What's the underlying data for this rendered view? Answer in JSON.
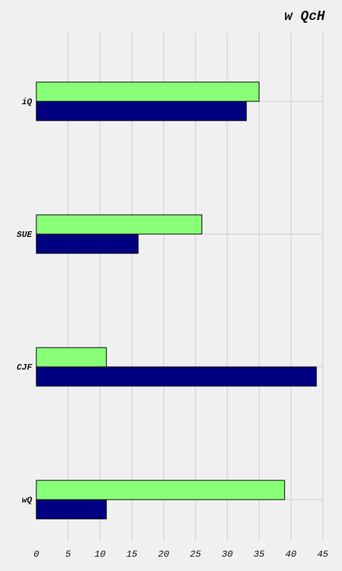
{
  "chart_data": {
    "type": "bar",
    "orientation": "horizontal",
    "title": "w QcH",
    "xlabel": "",
    "ylabel": "",
    "categories": [
      "iQ",
      "SUE",
      "CJF",
      "wQ"
    ],
    "series": [
      {
        "values": [
          35,
          26,
          11,
          39
        ],
        "color": "#88ff77"
      },
      {
        "values": [
          33,
          16,
          44,
          11
        ],
        "color": "#000080"
      }
    ],
    "xlim": [
      0,
      45
    ],
    "xticks": [
      0,
      5,
      10,
      15,
      20,
      25,
      30,
      35,
      40,
      45
    ],
    "grid": true,
    "background_color": "#f0f0f0",
    "grid_color": "#cccccc"
  }
}
